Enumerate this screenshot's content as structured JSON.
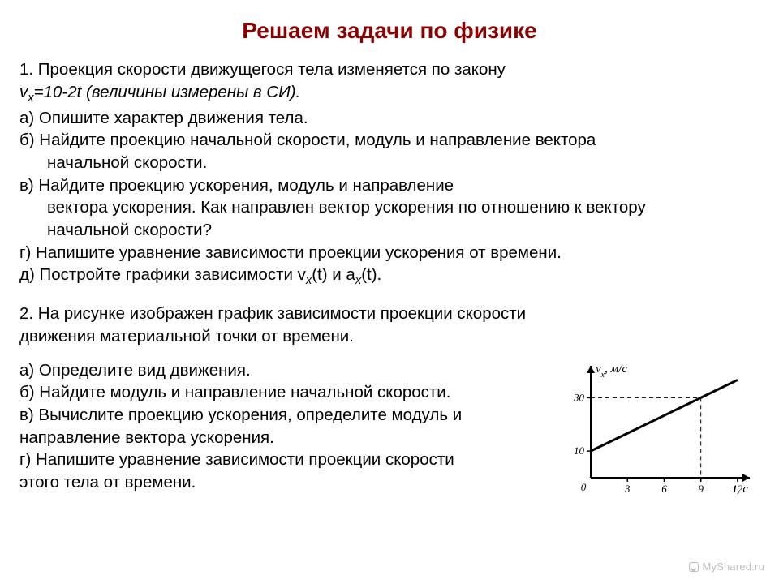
{
  "title": "Решаем задачи по физике",
  "p1": {
    "line1_a": "1.  Проекция скорости движущегося тела изменяется по закону",
    "line2_prefix": "v",
    "line2_sub": "x",
    "line2_rest": "=10-2t (величины измерены в СИ).",
    "a": "а) Опишите характер движения тела.",
    "b": "б) Найдите проекцию начальной скорости, модуль и направление вектора",
    "b2": "начальной скорости.",
    "c": "в) Найдите проекцию ускорения, модуль и направление",
    "c2": "вектора ускорения. Как направлен вектор ускорения по отношению к вектору",
    "c3": "начальной скорости?",
    "d": "г) Напишите уравнение зависимости проекции ускорения от времени.",
    "e_a": "д) Постройте графики зависимости v",
    "e_sub1": "x",
    "e_b": "(t) и a",
    "e_sub2": "x",
    "e_c": "(t)."
  },
  "p2": {
    "intro1": "2. На рисунке изображен график зависимости проекции скорости",
    "intro2": "движения материальной точки от времени.",
    "a": "а) Определите вид движения.",
    "b": "б) Найдите модуль и направление начальной скорости.",
    "c1": "в) Вычислите проекцию ускорения, определите модуль и",
    "c2": "направление вектора ускорения.",
    "d1": "г) Напишите уравнение зависимости проекции скорости",
    "d2": "этого тела от времени."
  },
  "chart": {
    "type": "line",
    "xlabel": "t, c",
    "ylabel_prefix": "v",
    "ylabel_sub": "x",
    "ylabel_suffix": ", м/с",
    "xlim": [
      0,
      13
    ],
    "ylim": [
      0,
      42
    ],
    "xticks": [
      3,
      6,
      9,
      12
    ],
    "yticks": [
      10,
      30
    ],
    "x_values": [
      0,
      12
    ],
    "y_values": [
      10,
      36.7
    ],
    "dash_ref_x": 9,
    "dash_ref_y": 30,
    "line_color": "#000000",
    "line_width": 3,
    "axis_color": "#000000",
    "axis_width": 2,
    "tick_fontsize": 13,
    "label_fontsize": 15,
    "background_color": "#ffffff",
    "origin_label": "0"
  },
  "watermark": "MyShared.ru"
}
